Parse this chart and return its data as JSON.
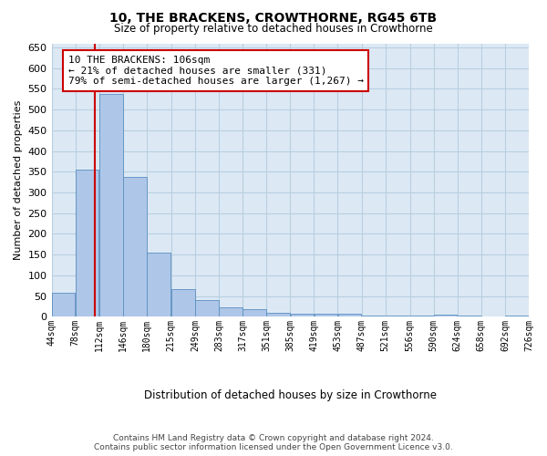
{
  "title": "10, THE BRACKENS, CROWTHORNE, RG45 6TB",
  "subtitle": "Size of property relative to detached houses in Crowthorne",
  "xlabel": "Distribution of detached houses by size in Crowthorne",
  "ylabel": "Number of detached properties",
  "annotation_line1": "10 THE BRACKENS: 106sqm",
  "annotation_line2": "← 21% of detached houses are smaller (331)",
  "annotation_line3": "79% of semi-detached houses are larger (1,267) →",
  "property_size": 106,
  "bar_left_edges": [
    44,
    78,
    112,
    146,
    180,
    215,
    249,
    283,
    317,
    351,
    385,
    419,
    453,
    487,
    521,
    556,
    590,
    624,
    658,
    692
  ],
  "bar_widths": [
    34,
    34,
    34,
    34,
    35,
    34,
    34,
    34,
    34,
    34,
    34,
    34,
    34,
    34,
    35,
    34,
    34,
    34,
    34,
    34
  ],
  "bar_heights": [
    57,
    355,
    537,
    337,
    155,
    67,
    40,
    22,
    18,
    10,
    7,
    8,
    8,
    2,
    2,
    2,
    4,
    2,
    1,
    3
  ],
  "bar_color": "#aec6e8",
  "bar_edge_color": "#5a8fc0",
  "red_line_color": "#cc0000",
  "annotation_box_color": "#cc0000",
  "plot_bg_color": "#dce9f5",
  "background_color": "#ffffff",
  "grid_color": "#b8cfe0",
  "ylim": [
    0,
    660
  ],
  "yticks": [
    0,
    50,
    100,
    150,
    200,
    250,
    300,
    350,
    400,
    450,
    500,
    550,
    600,
    650
  ],
  "xtick_labels": [
    "44sqm",
    "78sqm",
    "112sqm",
    "146sqm",
    "180sqm",
    "215sqm",
    "249sqm",
    "283sqm",
    "317sqm",
    "351sqm",
    "385sqm",
    "419sqm",
    "453sqm",
    "487sqm",
    "521sqm",
    "556sqm",
    "590sqm",
    "624sqm",
    "658sqm",
    "692sqm",
    "726sqm"
  ],
  "footer_line1": "Contains HM Land Registry data © Crown copyright and database right 2024.",
  "footer_line2": "Contains public sector information licensed under the Open Government Licence v3.0."
}
